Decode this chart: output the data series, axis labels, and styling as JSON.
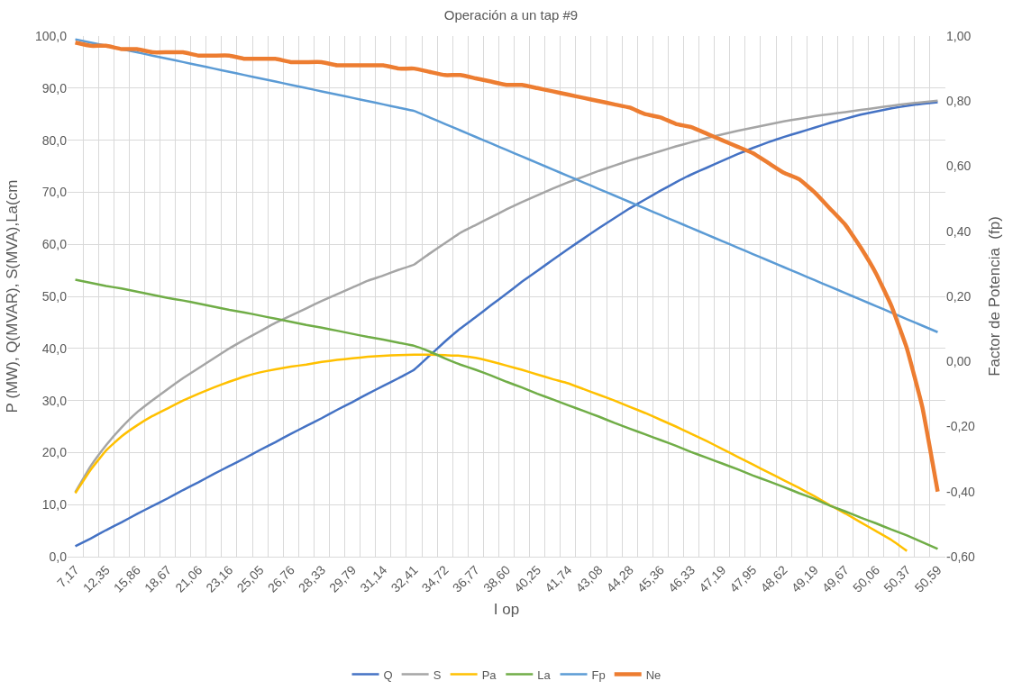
{
  "chart_data": {
    "type": "line",
    "title": "Operación a un tap #9",
    "xlabel": "I op",
    "ylabel": "P (MW), Q(MVAR), S(MVA),La(cm",
    "y2label": "Factor de Potencia  (fp)",
    "categories": [
      "7,17",
      null,
      "12,35",
      null,
      "15,86",
      null,
      "18,67",
      null,
      "21,06",
      null,
      "23,16",
      null,
      "25,05",
      null,
      "26,76",
      null,
      "28,33",
      null,
      "29,79",
      null,
      "31,14",
      null,
      "32,41",
      null,
      "34,72",
      null,
      "36,77",
      null,
      "38,60",
      null,
      "40,25",
      null,
      "41,74",
      null,
      "43,08",
      null,
      "44,28",
      null,
      "45,36",
      null,
      "46,33",
      null,
      "47,19",
      null,
      "47,95",
      null,
      "48,62",
      null,
      "49,19",
      null,
      "49,67",
      null,
      "50,06",
      null,
      "50,37",
      null,
      "50,59"
    ],
    "series": [
      {
        "name": "Q",
        "color": "#4472c4",
        "values": [
          2.0,
          3.5,
          5.1,
          6.6,
          8.2,
          9.7,
          11.2,
          12.8,
          14.3,
          15.9,
          17.4,
          18.9,
          20.5,
          22.0,
          23.6,
          25.1,
          26.6,
          28.2,
          29.7,
          31.3,
          32.8,
          34.3,
          35.9,
          38.6,
          41.3,
          43.8,
          46.0,
          48.3,
          50.5,
          52.8,
          54.9,
          57.0,
          59.1,
          61.1,
          63.1,
          65.0,
          66.9,
          68.6,
          70.3,
          71.9,
          73.4,
          74.7,
          76.0,
          77.3,
          78.5,
          79.6,
          80.6,
          81.5,
          82.4,
          83.3,
          84.1,
          84.9,
          85.5,
          86.1,
          86.6,
          87.0,
          87.3
        ]
      },
      {
        "name": "S",
        "color": "#a5a5a5",
        "values": [
          12.4,
          17.4,
          21.4,
          24.8,
          27.7,
          30.0,
          32.2,
          34.3,
          36.2,
          38.1,
          40.0,
          41.7,
          43.3,
          44.9,
          46.3,
          47.7,
          49.1,
          50.4,
          51.7,
          53.0,
          54.0,
          55.1,
          56.1,
          58.2,
          60.2,
          62.2,
          63.7,
          65.2,
          66.7,
          68.1,
          69.4,
          70.7,
          71.9,
          73.0,
          74.1,
          75.1,
          76.1,
          77.0,
          77.9,
          78.8,
          79.6,
          80.4,
          81.1,
          81.8,
          82.4,
          83.0,
          83.6,
          84.1,
          84.6,
          85.0,
          85.4,
          85.8,
          86.2,
          86.6,
          87.0,
          87.3,
          87.6
        ]
      },
      {
        "name": "Pa",
        "color": "#ffc000",
        "values": [
          12.2,
          16.7,
          20.4,
          23.1,
          25.2,
          27.0,
          28.5,
          30.0,
          31.3,
          32.5,
          33.6,
          34.6,
          35.4,
          36.0,
          36.5,
          36.9,
          37.4,
          37.8,
          38.1,
          38.4,
          38.6,
          38.7,
          38.8,
          38.8,
          38.7,
          38.6,
          38.2,
          37.5,
          36.7,
          35.9,
          35.0,
          34.1,
          33.3,
          32.2,
          31.1,
          30.0,
          28.8,
          27.6,
          26.3,
          25.0,
          23.6,
          22.2,
          20.7,
          19.2,
          17.7,
          16.2,
          14.7,
          13.2,
          11.6,
          9.9,
          8.3,
          6.6,
          4.9,
          3.2,
          1.1,
          null,
          null
        ]
      },
      {
        "name": "La",
        "color": "#70ad47",
        "values": [
          53.2,
          52.6,
          52.0,
          51.5,
          50.9,
          50.3,
          49.7,
          49.2,
          48.6,
          48.0,
          47.4,
          46.9,
          46.3,
          45.7,
          45.1,
          44.5,
          44.0,
          43.4,
          42.8,
          42.2,
          41.7,
          41.1,
          40.5,
          39.4,
          38.1,
          36.9,
          35.9,
          34.8,
          33.6,
          32.5,
          31.3,
          30.2,
          29.1,
          28.0,
          26.9,
          25.7,
          24.6,
          23.5,
          22.4,
          21.3,
          20.1,
          19.0,
          17.9,
          16.8,
          15.6,
          14.5,
          13.4,
          12.2,
          11.1,
          9.8,
          8.7,
          7.5,
          6.4,
          5.2,
          4.1,
          2.8,
          1.5
        ]
      },
      {
        "name": "Fp",
        "color": "#5b9bd5",
        "axis": "y2",
        "values": [
          0.99,
          0.98,
          0.97,
          0.96,
          0.95,
          0.94,
          0.93,
          0.92,
          0.91,
          0.9,
          0.89,
          0.88,
          0.87,
          0.86,
          0.85,
          0.84,
          0.83,
          0.82,
          0.81,
          0.8,
          0.79,
          0.78,
          0.77,
          0.75,
          0.73,
          0.71,
          0.69,
          0.67,
          0.65,
          0.63,
          0.61,
          0.59,
          0.57,
          0.55,
          0.53,
          0.51,
          0.49,
          0.47,
          0.45,
          0.43,
          0.41,
          0.39,
          0.37,
          0.35,
          0.33,
          0.31,
          0.29,
          0.27,
          0.25,
          0.23,
          0.21,
          0.19,
          0.17,
          0.15,
          0.13,
          0.11,
          0.09
        ]
      },
      {
        "name": "Ne",
        "color": "#ed7d31",
        "axis": "y2",
        "values": [
          0.98,
          0.97,
          0.97,
          0.96,
          0.96,
          0.95,
          0.95,
          0.95,
          0.94,
          0.94,
          0.94,
          0.93,
          0.93,
          0.93,
          0.92,
          0.92,
          0.92,
          0.91,
          0.91,
          0.91,
          0.91,
          0.9,
          0.9,
          0.89,
          0.88,
          0.88,
          0.87,
          0.86,
          0.85,
          0.85,
          0.84,
          0.83,
          0.82,
          0.81,
          0.8,
          0.79,
          0.78,
          0.76,
          0.75,
          0.73,
          0.72,
          0.7,
          0.68,
          0.66,
          0.64,
          0.61,
          0.58,
          0.56,
          0.52,
          0.47,
          0.42,
          0.35,
          0.27,
          0.17,
          0.04,
          -0.14,
          -0.4
        ]
      }
    ],
    "ylim": [
      0,
      100
    ],
    "yticks": [
      {
        "value": 0,
        "label": "0,0"
      },
      {
        "value": 10,
        "label": "10,0"
      },
      {
        "value": 20,
        "label": "20,0"
      },
      {
        "value": 30,
        "label": "30,0"
      },
      {
        "value": 40,
        "label": "40,0"
      },
      {
        "value": 50,
        "label": "50,0"
      },
      {
        "value": 60,
        "label": "60,0"
      },
      {
        "value": 70,
        "label": "70,0"
      },
      {
        "value": 80,
        "label": "80,0"
      },
      {
        "value": 90,
        "label": "90,0"
      },
      {
        "value": 100,
        "label": "100,0"
      }
    ],
    "y2lim": [
      -0.6,
      1.0
    ],
    "y2ticks": [
      {
        "value": -0.6,
        "label": "-0,60"
      },
      {
        "value": -0.4,
        "label": "-0,40"
      },
      {
        "value": -0.2,
        "label": "-0,20"
      },
      {
        "value": 0,
        "label": "0,00"
      },
      {
        "value": 0.2,
        "label": "0,20"
      },
      {
        "value": 0.4,
        "label": "0,40"
      },
      {
        "value": 0.6,
        "label": "0,60"
      },
      {
        "value": 0.8,
        "label": "0,80"
      },
      {
        "value": 1.0,
        "label": "1,00"
      }
    ],
    "grid": true,
    "legend": "bottom",
    "marker": "none",
    "line_style": "solid"
  }
}
